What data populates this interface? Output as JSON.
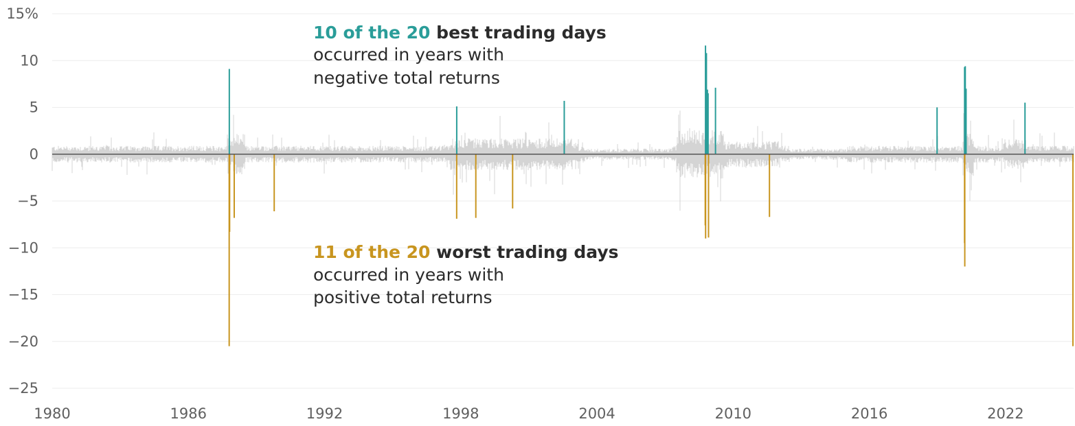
{
  "chart_data": {
    "type": "bar",
    "xlim": [
      1980,
      2025
    ],
    "ylim": [
      -25,
      15
    ],
    "y_ticks": [
      15,
      10,
      5,
      0,
      -5,
      -10,
      -15,
      -20,
      -25
    ],
    "y_tick_labels": [
      "15%",
      "10",
      "5",
      "0",
      "−5",
      "−10",
      "−15",
      "−20",
      "−25"
    ],
    "x_ticks": [
      1980,
      1986,
      1992,
      1998,
      2004,
      2010,
      2016,
      2022
    ],
    "x_tick_labels": [
      "1980",
      "1986",
      "1992",
      "1998",
      "2004",
      "2010",
      "2016",
      "2022"
    ],
    "grid": true,
    "colors": {
      "best": "#2a9d99",
      "worst": "#c8951f",
      "other": "#d4d4d4",
      "zero_line": "#555555",
      "grid": "#ececec",
      "ink": "#2b2b2b"
    },
    "annotations": {
      "best": {
        "highlight": "10 of the 20",
        "bold": "best trading days",
        "line2": "occurred in years with",
        "line3": "negative total returns"
      },
      "worst": {
        "highlight": "11 of the 20",
        "bold": "worst trading days",
        "line2": "occurred in years with",
        "line3": "positive total returns"
      }
    },
    "series": [
      {
        "name": "best",
        "points": [
          {
            "date": "1987-10-21",
            "value": 9.1
          },
          {
            "date": "1997-10-28",
            "value": 5.1
          },
          {
            "date": "2002-07-24",
            "value": 5.7
          },
          {
            "date": "2008-10-13",
            "value": 11.6
          },
          {
            "date": "2008-10-28",
            "value": 10.8
          },
          {
            "date": "2008-11-13",
            "value": 6.9
          },
          {
            "date": "2008-11-24",
            "value": 6.5
          },
          {
            "date": "2009-03-23",
            "value": 7.1
          },
          {
            "date": "2018-12-26",
            "value": 5.0
          },
          {
            "date": "2020-03-24",
            "value": 9.4
          },
          {
            "date": "2020-03-13",
            "value": 9.3
          },
          {
            "date": "2020-04-06",
            "value": 7.0
          },
          {
            "date": "2022-11-10",
            "value": 5.5
          }
        ]
      },
      {
        "name": "worst",
        "points": [
          {
            "date": "1987-10-19",
            "value": -20.5
          },
          {
            "date": "1987-10-26",
            "value": -8.3
          },
          {
            "date": "1988-01-08",
            "value": -6.8
          },
          {
            "date": "1989-10-13",
            "value": -6.1
          },
          {
            "date": "1997-10-27",
            "value": -6.9
          },
          {
            "date": "1998-08-31",
            "value": -6.8
          },
          {
            "date": "2000-04-14",
            "value": -5.8
          },
          {
            "date": "2008-10-09",
            "value": -7.6
          },
          {
            "date": "2008-10-15",
            "value": -9.0
          },
          {
            "date": "2008-12-01",
            "value": -8.9
          },
          {
            "date": "2011-08-08",
            "value": -6.7
          },
          {
            "date": "2020-03-16",
            "value": -12.0
          },
          {
            "date": "2020-03-12",
            "value": -9.5
          },
          {
            "date": "2025-04-03",
            "value": -20.5
          },
          {
            "date": "2025-04-04",
            "value": -6.0
          }
        ]
      }
    ]
  }
}
